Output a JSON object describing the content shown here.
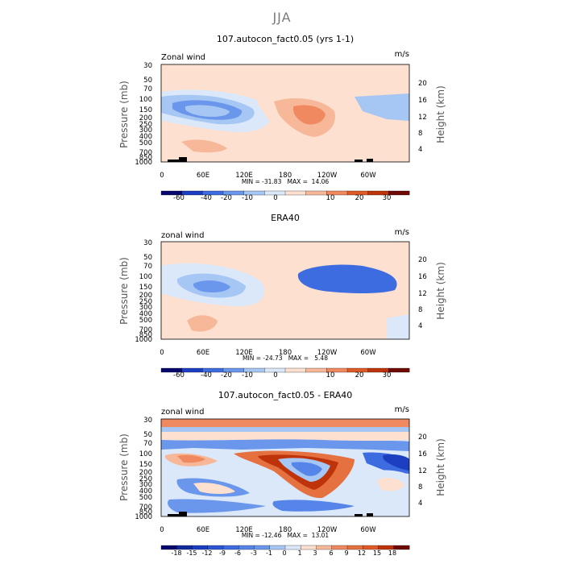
{
  "figure": {
    "suptitle": "JJA"
  },
  "chart_data": [
    {
      "type": "heatmap",
      "title": "107.autocon_fact0.05 (yrs 1-1)",
      "left_label": "Zonal wind",
      "right_label": "m/s",
      "ylabel": "Pressure (mb)",
      "ylabel_right": "Height (km)",
      "xticks": [
        "0",
        "60E",
        "120E",
        "180",
        "120W",
        "60W"
      ],
      "yticks": [
        "30",
        "50",
        "70",
        "100",
        "150",
        "200",
        "250",
        "300",
        "400",
        "500",
        "700",
        "850",
        "1000"
      ],
      "height_ticks": [
        "20",
        "16",
        "12",
        "8",
        "4"
      ],
      "stats": "MIN = -31.83   MAX =  14.06",
      "colorbar_labels": [
        "-60",
        "-40",
        "-20",
        "-10",
        "0",
        "10",
        "20",
        "30"
      ],
      "colors": [
        "#06086e",
        "#1c3ec0",
        "#3d6be0",
        "#6a97ec",
        "#a6c6f3",
        "#dbe8fa",
        "#fde0cf",
        "#f7b89a",
        "#f0895f",
        "#e05a27",
        "#bf330b",
        "#6e0a02"
      ],
      "xlim": [
        0,
        360
      ],
      "ylim": [
        1000,
        30
      ],
      "field_levels": [
        "#fde0cf",
        "#dbe8fa",
        "#a6c6f3",
        "#6a97ec",
        "#3d6be0",
        "#f7b89a",
        "#f0895f"
      ]
    },
    {
      "type": "heatmap",
      "title": "ERA40",
      "left_label": "zonal wind",
      "right_label": "m/s",
      "ylabel": "Pressure (mb)",
      "ylabel_right": "Height (km)",
      "xticks": [
        "0",
        "60E",
        "120E",
        "180",
        "120W",
        "60W"
      ],
      "yticks": [
        "30",
        "50",
        "70",
        "100",
        "150",
        "200",
        "250",
        "300",
        "400",
        "500",
        "700",
        "850",
        "1000"
      ],
      "height_ticks": [
        "20",
        "16",
        "12",
        "8",
        "4"
      ],
      "stats": "MIN = -24.73   MAX =   5.48",
      "colorbar_labels": [
        "-60",
        "-40",
        "-20",
        "-10",
        "0",
        "10",
        "20",
        "30"
      ],
      "colors": [
        "#06086e",
        "#1c3ec0",
        "#3d6be0",
        "#6a97ec",
        "#a6c6f3",
        "#dbe8fa",
        "#fde0cf",
        "#f7b89a",
        "#f0895f",
        "#e05a27",
        "#bf330b",
        "#6e0a02"
      ],
      "xlim": [
        0,
        360
      ],
      "ylim": [
        1000,
        30
      ]
    },
    {
      "type": "heatmap",
      "title": "107.autocon_fact0.05 - ERA40",
      "left_label": "zonal wind",
      "right_label": "m/s",
      "ylabel": "Pressure (mb)",
      "ylabel_right": "Height (km)",
      "xticks": [
        "0",
        "60E",
        "120E",
        "180",
        "120W",
        "60W"
      ],
      "yticks": [
        "30",
        "50",
        "70",
        "100",
        "150",
        "200",
        "250",
        "300",
        "400",
        "500",
        "700",
        "850",
        "1000"
      ],
      "height_ticks": [
        "20",
        "16",
        "12",
        "8",
        "4"
      ],
      "stats": "MIN = -12.46   MAX =  13.01",
      "colorbar_labels": [
        "-18",
        "-15",
        "-12",
        "-9",
        "-6",
        "-3",
        "-1",
        "0",
        "1",
        "3",
        "6",
        "9",
        "12",
        "15",
        "18"
      ],
      "colors": [
        "#06086e",
        "#112a9c",
        "#1c3ec0",
        "#2b55d4",
        "#3d6be0",
        "#5585e8",
        "#6a97ec",
        "#a6c6f3",
        "#dbe8fa",
        "#fde0cf",
        "#f7b89a",
        "#f0895f",
        "#e57040",
        "#e05a27",
        "#bf330b",
        "#6e0a02"
      ],
      "xlim": [
        0,
        360
      ],
      "ylim": [
        1000,
        30
      ]
    }
  ]
}
